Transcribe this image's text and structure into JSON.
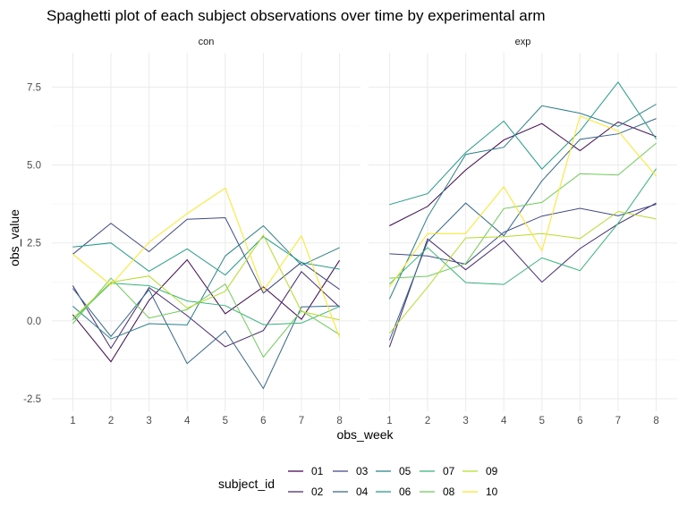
{
  "chart_data": {
    "type": "line",
    "title": "Spaghetti plot of each subject observations over time by experimental arm",
    "xlabel": "obs_week",
    "ylabel": "obs_value",
    "x": [
      1,
      2,
      3,
      4,
      5,
      6,
      7,
      8
    ],
    "xticks": [
      "1",
      "2",
      "3",
      "4",
      "5",
      "6",
      "7",
      "8"
    ],
    "ylim": [
      -2.9,
      8.6
    ],
    "yticks": [
      -2.5,
      0.0,
      2.5,
      5.0,
      7.5
    ],
    "ytick_labels": [
      "-2.5",
      "0.0",
      "2.5",
      "5.0",
      "7.5"
    ],
    "grid": true,
    "legend": {
      "title": "subject_id",
      "position": "bottom",
      "entries": [
        "01",
        "02",
        "03",
        "04",
        "05",
        "06",
        "07",
        "08",
        "09",
        "10"
      ]
    },
    "colors": {
      "01": "#440154",
      "02": "#482878",
      "03": "#3e4989",
      "04": "#31688e",
      "05": "#26828e",
      "06": "#1f9e89",
      "07": "#35b779",
      "08": "#6ece58",
      "09": "#b5de2b",
      "10": "#fde725"
    },
    "panels": [
      {
        "label": "con",
        "series": [
          {
            "name": "01",
            "values": [
              0.2,
              -1.31,
              0.66,
              1.96,
              0.23,
              1.09,
              0.05,
              1.94
            ]
          },
          {
            "name": "02",
            "values": [
              1.13,
              -0.88,
              1.07,
              0.17,
              -0.83,
              -0.31,
              1.58,
              0.44
            ]
          },
          {
            "name": "03",
            "values": [
              2.14,
              3.13,
              2.22,
              3.26,
              3.31,
              0.89,
              1.88,
              1.01
            ]
          },
          {
            "name": "04",
            "values": [
              1.04,
              -0.5,
              1.0,
              -1.37,
              -0.32,
              -2.17,
              0.45,
              0.48
            ]
          },
          {
            "name": "05",
            "values": [
              0.47,
              -0.58,
              -0.09,
              -0.13,
              2.08,
              3.05,
              1.78,
              2.35
            ]
          },
          {
            "name": "06",
            "values": [
              2.37,
              2.5,
              1.59,
              2.31,
              1.47,
              2.7,
              1.87,
              1.66
            ]
          },
          {
            "name": "07",
            "values": [
              0.03,
              1.21,
              1.13,
              0.64,
              0.49,
              -0.12,
              -0.07,
              0.46
            ]
          },
          {
            "name": "08",
            "values": [
              -0.09,
              1.37,
              0.09,
              0.36,
              1.18,
              -1.16,
              0.33,
              -0.44
            ]
          },
          {
            "name": "09",
            "values": [
              0.08,
              1.24,
              1.44,
              0.41,
              0.95,
              2.75,
              0.3,
              0.03
            ]
          },
          {
            "name": "10",
            "values": [
              2.14,
              1.15,
              2.52,
              3.44,
              4.26,
              0.97,
              2.73,
              -0.53
            ]
          }
        ]
      },
      {
        "label": "exp",
        "series": [
          {
            "name": "01",
            "values": [
              3.05,
              3.67,
              4.84,
              5.8,
              6.33,
              5.46,
              6.38,
              5.91
            ]
          },
          {
            "name": "02",
            "values": [
              -0.84,
              2.63,
              1.64,
              2.58,
              1.24,
              2.32,
              3.11,
              3.78
            ]
          },
          {
            "name": "03",
            "values": [
              2.15,
              2.08,
              1.82,
              2.84,
              3.36,
              3.61,
              3.37,
              3.74
            ]
          },
          {
            "name": "04",
            "values": [
              -0.62,
              2.54,
              3.78,
              2.73,
              4.49,
              5.82,
              6.0,
              6.49
            ]
          },
          {
            "name": "05",
            "values": [
              0.7,
              3.33,
              5.34,
              5.57,
              6.9,
              6.66,
              6.24,
              6.95
            ]
          },
          {
            "name": "06",
            "values": [
              3.73,
              4.08,
              5.4,
              6.41,
              4.87,
              6.09,
              7.66,
              5.83
            ]
          },
          {
            "name": "07",
            "values": [
              1.18,
              2.35,
              1.23,
              1.17,
              2.02,
              1.61,
              3.13,
              4.88
            ]
          },
          {
            "name": "08",
            "values": [
              1.37,
              1.43,
              1.84,
              3.6,
              3.8,
              4.72,
              4.68,
              5.7
            ]
          },
          {
            "name": "09",
            "values": [
              -0.4,
              1.08,
              2.66,
              2.7,
              2.8,
              2.64,
              3.51,
              3.27
            ]
          },
          {
            "name": "10",
            "values": [
              1.09,
              2.8,
              2.8,
              4.3,
              2.25,
              6.57,
              6.09,
              4.64
            ]
          }
        ]
      }
    ]
  }
}
